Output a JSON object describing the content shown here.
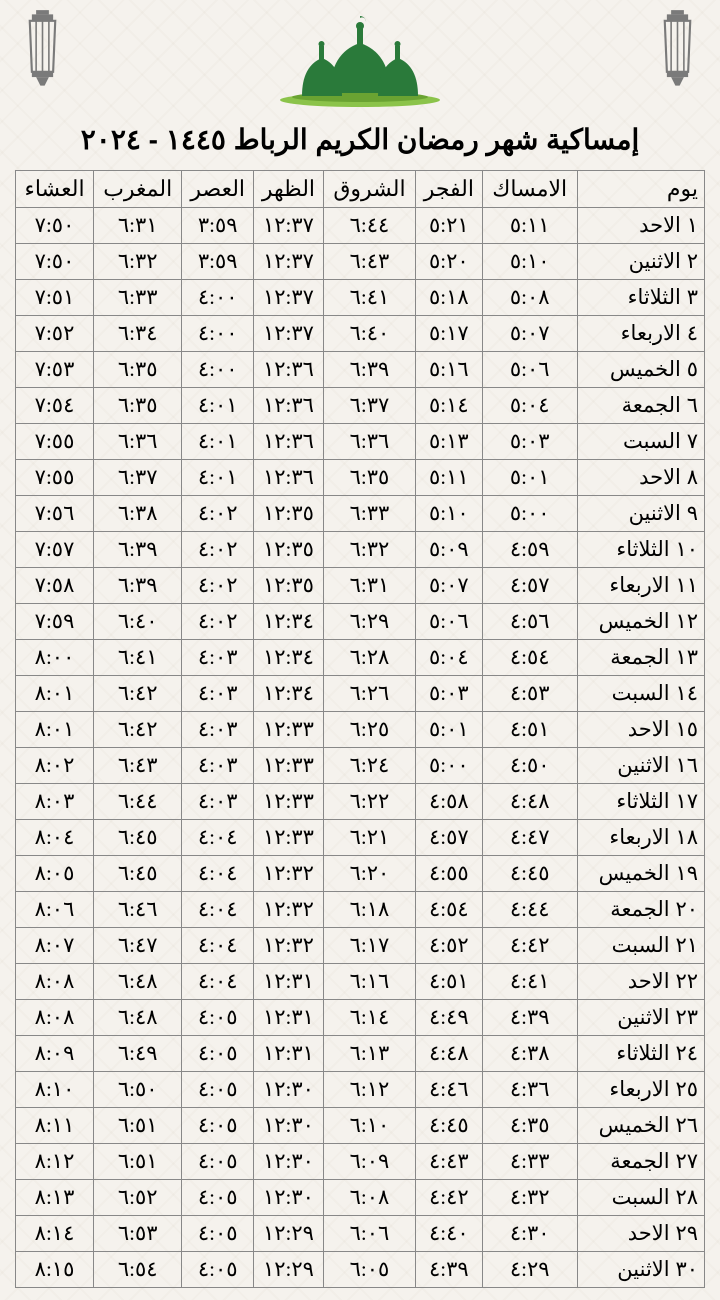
{
  "title": "إمساكية شهر رمضان الكريم الرباط ١٤٤٥ - ٢٠٢٤",
  "colors": {
    "mosque": "#2a7a3a",
    "grass": "#8bc34a",
    "lantern": "#7a7a7a",
    "background": "#f5f2ed",
    "border": "#888",
    "text": "#000"
  },
  "table": {
    "headers": [
      "يوم",
      "الامساك",
      "الفجر",
      "الشروق",
      "الظهر",
      "العصر",
      "المغرب",
      "العشاء"
    ],
    "rows": [
      {
        "day": "١ الاحد",
        "imsak": "٥:١١",
        "fajr": "٥:٢١",
        "shuruq": "٦:٤٤",
        "dhuhr": "١٢:٣٧",
        "asr": "٣:٥٩",
        "maghrib": "٦:٣١",
        "isha": "٧:٥٠"
      },
      {
        "day": "٢ الاثنين",
        "imsak": "٥:١٠",
        "fajr": "٥:٢٠",
        "shuruq": "٦:٤٣",
        "dhuhr": "١٢:٣٧",
        "asr": "٣:٥٩",
        "maghrib": "٦:٣٢",
        "isha": "٧:٥٠"
      },
      {
        "day": "٣ الثلاثاء",
        "imsak": "٥:٠٨",
        "fajr": "٥:١٨",
        "shuruq": "٦:٤١",
        "dhuhr": "١٢:٣٧",
        "asr": "٤:٠٠",
        "maghrib": "٦:٣٣",
        "isha": "٧:٥١"
      },
      {
        "day": "٤ الاربعاء",
        "imsak": "٥:٠٧",
        "fajr": "٥:١٧",
        "shuruq": "٦:٤٠",
        "dhuhr": "١٢:٣٧",
        "asr": "٤:٠٠",
        "maghrib": "٦:٣٤",
        "isha": "٧:٥٢"
      },
      {
        "day": "٥ الخميس",
        "imsak": "٥:٠٦",
        "fajr": "٥:١٦",
        "shuruq": "٦:٣٩",
        "dhuhr": "١٢:٣٦",
        "asr": "٤:٠٠",
        "maghrib": "٦:٣٥",
        "isha": "٧:٥٣"
      },
      {
        "day": "٦ الجمعة",
        "imsak": "٥:٠٤",
        "fajr": "٥:١٤",
        "shuruq": "٦:٣٧",
        "dhuhr": "١٢:٣٦",
        "asr": "٤:٠١",
        "maghrib": "٦:٣٥",
        "isha": "٧:٥٤"
      },
      {
        "day": "٧ السبت",
        "imsak": "٥:٠٣",
        "fajr": "٥:١٣",
        "shuruq": "٦:٣٦",
        "dhuhr": "١٢:٣٦",
        "asr": "٤:٠١",
        "maghrib": "٦:٣٦",
        "isha": "٧:٥٥"
      },
      {
        "day": "٨ الاحد",
        "imsak": "٥:٠١",
        "fajr": "٥:١١",
        "shuruq": "٦:٣٥",
        "dhuhr": "١٢:٣٦",
        "asr": "٤:٠١",
        "maghrib": "٦:٣٧",
        "isha": "٧:٥٥"
      },
      {
        "day": "٩ الاثنين",
        "imsak": "٥:٠٠",
        "fajr": "٥:١٠",
        "shuruq": "٦:٣٣",
        "dhuhr": "١٢:٣٥",
        "asr": "٤:٠٢",
        "maghrib": "٦:٣٨",
        "isha": "٧:٥٦"
      },
      {
        "day": "١٠ الثلاثاء",
        "imsak": "٤:٥٩",
        "fajr": "٥:٠٩",
        "shuruq": "٦:٣٢",
        "dhuhr": "١٢:٣٥",
        "asr": "٤:٠٢",
        "maghrib": "٦:٣٩",
        "isha": "٧:٥٧"
      },
      {
        "day": "١١ الاربعاء",
        "imsak": "٤:٥٧",
        "fajr": "٥:٠٧",
        "shuruq": "٦:٣١",
        "dhuhr": "١٢:٣٥",
        "asr": "٤:٠٢",
        "maghrib": "٦:٣٩",
        "isha": "٧:٥٨"
      },
      {
        "day": "١٢ الخميس",
        "imsak": "٤:٥٦",
        "fajr": "٥:٠٦",
        "shuruq": "٦:٢٩",
        "dhuhr": "١٢:٣٤",
        "asr": "٤:٠٢",
        "maghrib": "٦:٤٠",
        "isha": "٧:٥٩"
      },
      {
        "day": "١٣ الجمعة",
        "imsak": "٤:٥٤",
        "fajr": "٥:٠٤",
        "shuruq": "٦:٢٨",
        "dhuhr": "١٢:٣٤",
        "asr": "٤:٠٣",
        "maghrib": "٦:٤١",
        "isha": "٨:٠٠"
      },
      {
        "day": "١٤ السبت",
        "imsak": "٤:٥٣",
        "fajr": "٥:٠٣",
        "shuruq": "٦:٢٦",
        "dhuhr": "١٢:٣٤",
        "asr": "٤:٠٣",
        "maghrib": "٦:٤٢",
        "isha": "٨:٠١"
      },
      {
        "day": "١٥ الاحد",
        "imsak": "٤:٥١",
        "fajr": "٥:٠١",
        "shuruq": "٦:٢٥",
        "dhuhr": "١٢:٣٣",
        "asr": "٤:٠٣",
        "maghrib": "٦:٤٢",
        "isha": "٨:٠١"
      },
      {
        "day": "١٦ الاثنين",
        "imsak": "٤:٥٠",
        "fajr": "٥:٠٠",
        "shuruq": "٦:٢٤",
        "dhuhr": "١٢:٣٣",
        "asr": "٤:٠٣",
        "maghrib": "٦:٤٣",
        "isha": "٨:٠٢"
      },
      {
        "day": "١٧ الثلاثاء",
        "imsak": "٤:٤٨",
        "fajr": "٤:٥٨",
        "shuruq": "٦:٢٢",
        "dhuhr": "١٢:٣٣",
        "asr": "٤:٠٣",
        "maghrib": "٦:٤٤",
        "isha": "٨:٠٣"
      },
      {
        "day": "١٨ الاربعاء",
        "imsak": "٤:٤٧",
        "fajr": "٤:٥٧",
        "shuruq": "٦:٢١",
        "dhuhr": "١٢:٣٣",
        "asr": "٤:٠٤",
        "maghrib": "٦:٤٥",
        "isha": "٨:٠٤"
      },
      {
        "day": "١٩ الخميس",
        "imsak": "٤:٤٥",
        "fajr": "٤:٥٥",
        "shuruq": "٦:٢٠",
        "dhuhr": "١٢:٣٢",
        "asr": "٤:٠٤",
        "maghrib": "٦:٤٥",
        "isha": "٨:٠٥"
      },
      {
        "day": "٢٠ الجمعة",
        "imsak": "٤:٤٤",
        "fajr": "٤:٥٤",
        "shuruq": "٦:١٨",
        "dhuhr": "١٢:٣٢",
        "asr": "٤:٠٤",
        "maghrib": "٦:٤٦",
        "isha": "٨:٠٦"
      },
      {
        "day": "٢١ السبت",
        "imsak": "٤:٤٢",
        "fajr": "٤:٥٢",
        "shuruq": "٦:١٧",
        "dhuhr": "١٢:٣٢",
        "asr": "٤:٠٤",
        "maghrib": "٦:٤٧",
        "isha": "٨:٠٧"
      },
      {
        "day": "٢٢ الاحد",
        "imsak": "٤:٤١",
        "fajr": "٤:٥١",
        "shuruq": "٦:١٦",
        "dhuhr": "١٢:٣١",
        "asr": "٤:٠٤",
        "maghrib": "٦:٤٨",
        "isha": "٨:٠٨"
      },
      {
        "day": "٢٣ الاثنين",
        "imsak": "٤:٣٩",
        "fajr": "٤:٤٩",
        "shuruq": "٦:١٤",
        "dhuhr": "١٢:٣١",
        "asr": "٤:٠٥",
        "maghrib": "٦:٤٨",
        "isha": "٨:٠٨"
      },
      {
        "day": "٢٤ الثلاثاء",
        "imsak": "٤:٣٨",
        "fajr": "٤:٤٨",
        "shuruq": "٦:١٣",
        "dhuhr": "١٢:٣١",
        "asr": "٤:٠٥",
        "maghrib": "٦:٤٩",
        "isha": "٨:٠٩"
      },
      {
        "day": "٢٥ الاربعاء",
        "imsak": "٤:٣٦",
        "fajr": "٤:٤٦",
        "shuruq": "٦:١٢",
        "dhuhr": "١٢:٣٠",
        "asr": "٤:٠٥",
        "maghrib": "٦:٥٠",
        "isha": "٨:١٠"
      },
      {
        "day": "٢٦ الخميس",
        "imsak": "٤:٣٥",
        "fajr": "٤:٤٥",
        "shuruq": "٦:١٠",
        "dhuhr": "١٢:٣٠",
        "asr": "٤:٠٥",
        "maghrib": "٦:٥١",
        "isha": "٨:١١"
      },
      {
        "day": "٢٧ الجمعة",
        "imsak": "٤:٣٣",
        "fajr": "٤:٤٣",
        "shuruq": "٦:٠٩",
        "dhuhr": "١٢:٣٠",
        "asr": "٤:٠٥",
        "maghrib": "٦:٥١",
        "isha": "٨:١٢"
      },
      {
        "day": "٢٨ السبت",
        "imsak": "٤:٣٢",
        "fajr": "٤:٤٢",
        "shuruq": "٦:٠٨",
        "dhuhr": "١٢:٣٠",
        "asr": "٤:٠٥",
        "maghrib": "٦:٥٢",
        "isha": "٨:١٣"
      },
      {
        "day": "٢٩ الاحد",
        "imsak": "٤:٣٠",
        "fajr": "٤:٤٠",
        "shuruq": "٦:٠٦",
        "dhuhr": "١٢:٢٩",
        "asr": "٤:٠٥",
        "maghrib": "٦:٥٣",
        "isha": "٨:١٤"
      },
      {
        "day": "٣٠ الاثنين",
        "imsak": "٤:٢٩",
        "fajr": "٤:٣٩",
        "shuruq": "٦:٠٥",
        "dhuhr": "١٢:٢٩",
        "asr": "٤:٠٥",
        "maghrib": "٦:٥٤",
        "isha": "٨:١٥"
      }
    ]
  }
}
